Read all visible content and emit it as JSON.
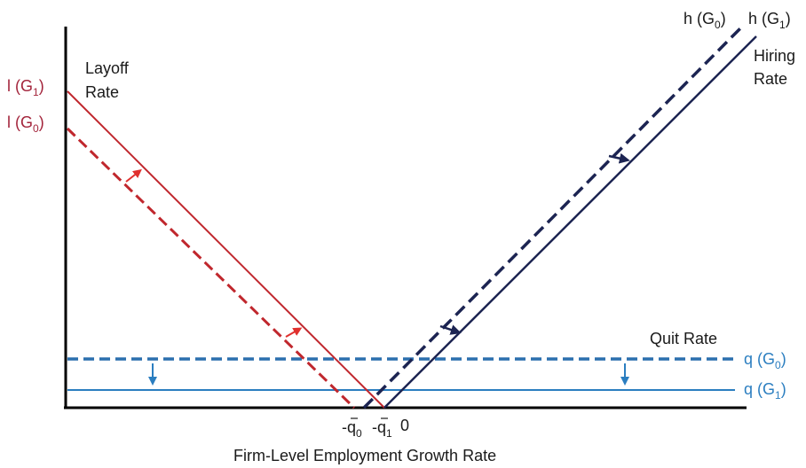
{
  "labels": {
    "layoff_line1": "Layoff",
    "layoff_line2": "Rate",
    "hiring_line1": "Hiring",
    "hiring_line2": "Rate",
    "quit_rate": "Quit Rate",
    "x_axis": "Firm-Level Employment Growth Rate",
    "tick_zero": "0"
  },
  "curve_labels": {
    "l_g1": {
      "prefix": "l (G",
      "sub": "1",
      "suffix": ")"
    },
    "l_g0": {
      "prefix": "l (G",
      "sub": "0",
      "suffix": ")"
    },
    "h_g0": {
      "prefix": "h (G",
      "sub": "0",
      "suffix": ")"
    },
    "h_g1": {
      "prefix": "h (G",
      "sub": "1",
      "suffix": ")"
    },
    "q_g0": {
      "prefix": "q (G",
      "sub": "0",
      "suffix": ")"
    },
    "q_g1": {
      "prefix": "q (G",
      "sub": "1",
      "suffix": ")"
    }
  },
  "ticks": {
    "q0": {
      "prefix": "-q",
      "sub": "0"
    },
    "q1": {
      "prefix": "-q",
      "sub": "1"
    }
  },
  "colors": {
    "layoff": "#c0272d",
    "layoff_label": "#a3243b",
    "hiring": "#1c2452",
    "quit": "#2b7ec0",
    "axis": "#000000"
  }
}
